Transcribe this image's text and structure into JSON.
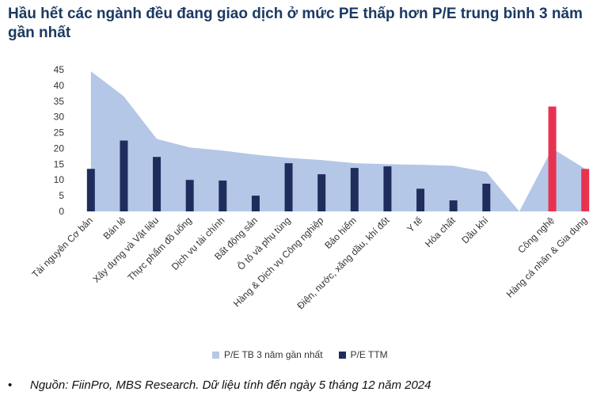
{
  "title": "Hầu hết các ngành đều đang giao dịch ở mức PE thấp hơn P/E trung bình 3 năm gần nhất",
  "source": {
    "bullet": "•",
    "text": "Nguồn: FiinPro, MBS Research. Dữ liệu tính đến ngày 5 tháng 12 năm 2024"
  },
  "legend": {
    "area_label": "P/E TB 3 năm gần nhất",
    "bar_label": "P/E TTM"
  },
  "colors": {
    "area": "#b4c7e7",
    "bar": "#1f2d5c",
    "highlight": "#e8334f",
    "title": "#1b3a63"
  },
  "chart_data": {
    "type": "bar",
    "categories": [
      "Tài nguyên Cơ bản",
      "Bán lẻ",
      "Xây dựng và Vật liệu",
      "Thực phẩm đồ uống",
      "Dịch vụ tài chính",
      "Bất động sản",
      "Ô tô và phụ tùng",
      "Hàng & Dịch vụ Công nghiệp",
      "Bảo hiểm",
      "Điện, nước, xăng dầu, khí đốt",
      "Y tế",
      "Hóa chất",
      "Dầu khí",
      "",
      "Công nghệ",
      "Hàng cá nhân & Gia dụng"
    ],
    "series": [
      {
        "name": "P/E TB 3 năm gần nhất",
        "type": "area",
        "values": [
          44.5,
          36.5,
          23,
          20.3,
          19.3,
          18,
          17,
          16.3,
          15.3,
          15,
          14.8,
          14.5,
          12.5,
          0,
          20,
          13.5
        ]
      },
      {
        "name": "P/E TTM",
        "type": "bar",
        "values": [
          13.5,
          22.5,
          17.3,
          10,
          9.8,
          5,
          15.3,
          11.8,
          13.8,
          14.3,
          7.2,
          3.5,
          8.8,
          null,
          33.3,
          13.5
        ]
      }
    ],
    "highlight_categories": [
      "Công nghệ",
      "Hàng cá nhân & Gia dụng"
    ],
    "ylim": [
      0,
      45
    ],
    "yticks": [
      0,
      5,
      10,
      15,
      20,
      25,
      30,
      35,
      40,
      45
    ],
    "grid": false,
    "legend_position": "bottom"
  }
}
